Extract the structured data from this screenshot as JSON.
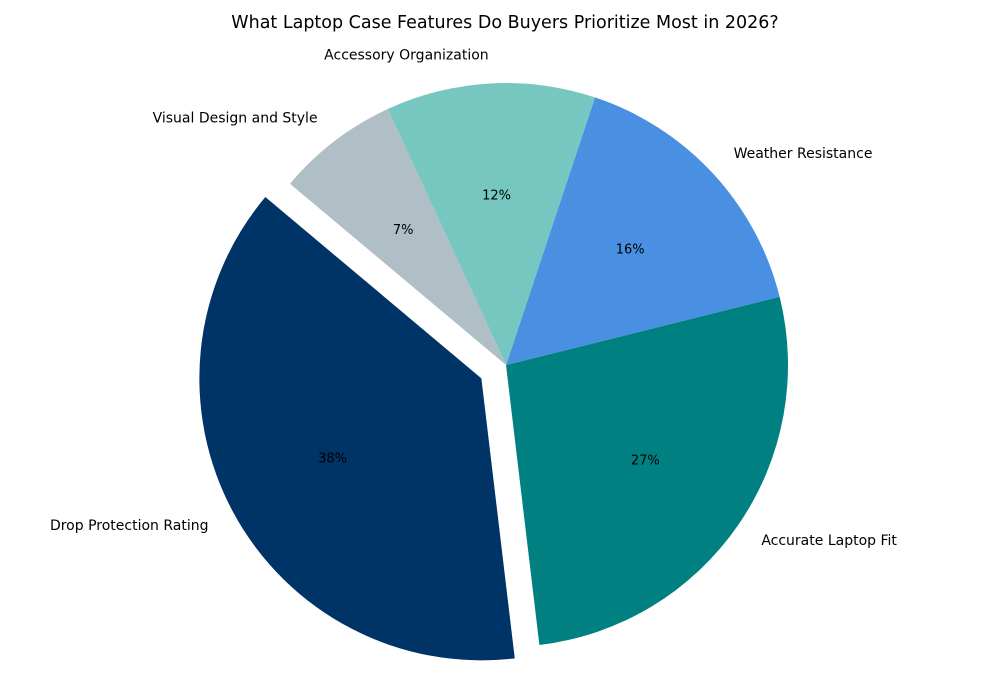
{
  "chart_data": {
    "type": "pie",
    "title": "What Laptop Case Features Do Buyers Prioritize Most in 2026?",
    "start_angle_deg": 140,
    "direction": "counterclockwise",
    "categories": [
      "Drop Protection Rating",
      "Accurate Laptop Fit",
      "Weather Resistance",
      "Accessory Organization",
      "Visual Design and Style"
    ],
    "values": [
      38,
      27,
      16,
      12,
      7
    ],
    "value_labels": [
      "38%",
      "27%",
      "16%",
      "12%",
      "7%"
    ],
    "colors": [
      "#003366",
      "#008080",
      "#4a90e2",
      "#76c7c0",
      "#b0bec5"
    ],
    "exploded": [
      true,
      false,
      false,
      false,
      false
    ]
  }
}
